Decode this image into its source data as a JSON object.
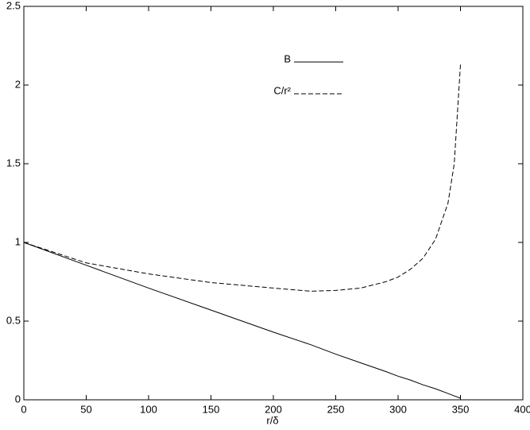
{
  "chart_data": {
    "type": "line",
    "x_label": "r/δ",
    "x": [
      0,
      50,
      100,
      150,
      200,
      230,
      250,
      270,
      290,
      300,
      310,
      320,
      330,
      340,
      345,
      350
    ],
    "series": [
      {
        "name": "B",
        "color": "#000000",
        "dash": false,
        "values": [
          1,
          0.855,
          0.71,
          0.57,
          0.43,
          0.35,
          0.29,
          0.235,
          0.18,
          0.15,
          0.125,
          0.095,
          0.07,
          0.04,
          0.025,
          0.01
        ]
      },
      {
        "name": "C/r²",
        "color": "#000000",
        "dash": true,
        "values": [
          1,
          0.87,
          0.8,
          0.745,
          0.71,
          0.69,
          0.695,
          0.71,
          0.75,
          0.78,
          0.83,
          0.9,
          1.02,
          1.25,
          1.5,
          2.13
        ]
      }
    ],
    "xlim": [
      0,
      400
    ],
    "xticks": [
      0,
      50,
      100,
      150,
      200,
      250,
      300,
      350,
      400
    ],
    "ylim": [
      0,
      2.5
    ],
    "yticks": [
      0,
      0.5,
      1,
      1.5,
      2,
      2.5
    ],
    "grid": false
  }
}
